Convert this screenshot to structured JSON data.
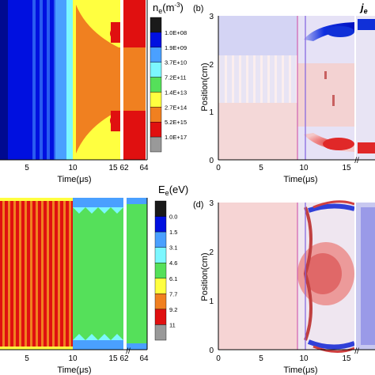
{
  "figure": {
    "panels": [
      {
        "id": "a",
        "label": "",
        "colorbar_title": "n",
        "colorbar_sub": "e",
        "colorbar_unit": "(m",
        "colorbar_sup": "-3",
        "colorbar_unit_end": ")",
        "colorbar_ticks": [
          "1.0E+08",
          "1.9E+09",
          "3.7E+10",
          "7.2E+11",
          "1.4E+13",
          "2.7E+14",
          "5.2E+15",
          "1.0E+17"
        ],
        "colorbar_colors": [
          "#1a1a1a",
          "#0010e0",
          "#4aa0ff",
          "#7cf7ff",
          "#55e05a",
          "#ffff40",
          "#f08020",
          "#e01010",
          "#999999"
        ]
      },
      {
        "id": "b",
        "label": "(b)",
        "colorbar_title": "j",
        "colorbar_sub": "e"
      },
      {
        "id": "c",
        "label": "",
        "colorbar_title": "E",
        "colorbar_sub": "e",
        "colorbar_unit": "(eV)",
        "colorbar_ticks": [
          "0.0",
          "1.5",
          "3.1",
          "4.6",
          "6.1",
          "7.7",
          "9.2",
          "11"
        ],
        "colorbar_colors": [
          "#1a1a1a",
          "#0010e0",
          "#4aa0ff",
          "#7cf7ff",
          "#55e05a",
          "#ffff40",
          "#f08020",
          "#e01010",
          "#999999"
        ]
      },
      {
        "id": "d",
        "label": "(d)"
      }
    ],
    "x_axis": {
      "label": "Time(μs)",
      "ticks": [
        "0",
        "5",
        "10",
        "15",
        "62",
        "64"
      ]
    },
    "y_axis": {
      "label": "Position(cm)",
      "ticks": [
        "0",
        "1",
        "2",
        "3"
      ]
    },
    "break_marker": "//"
  },
  "chart_data": [
    {
      "type": "heatmap",
      "panel": "a",
      "title": "",
      "xlabel": "Time(μs)",
      "ylabel": "",
      "x_ticks": [
        "5",
        "10",
        "15",
        "62",
        "64"
      ],
      "colorbar": [
        "1.0E+08",
        "1.9E+09",
        "3.7E+10",
        "7.2E+11",
        "1.4E+13",
        "2.7E+14",
        "5.2E+15",
        "1.0E+17"
      ],
      "colorbar_label": "ne(m-3)"
    },
    {
      "type": "heatmap",
      "panel": "b",
      "title": "",
      "xlabel": "Time(μs)",
      "ylabel": "Position(cm)",
      "x_ticks": [
        "0",
        "5",
        "10",
        "15"
      ],
      "y_ticks": [
        "0",
        "1",
        "2",
        "3"
      ],
      "ylim": [
        0,
        3
      ],
      "colorbar_label": "je"
    },
    {
      "type": "heatmap",
      "panel": "c",
      "title": "",
      "xlabel": "Time(μs)",
      "ylabel": "",
      "x_ticks": [
        "5",
        "10",
        "15",
        "62",
        "64"
      ],
      "colorbar": [
        "0.0",
        "1.5",
        "3.1",
        "4.6",
        "6.1",
        "7.7",
        "9.2",
        "11"
      ],
      "colorbar_label": "Ee(eV)"
    },
    {
      "type": "heatmap",
      "panel": "d",
      "title": "",
      "xlabel": "Time(μs)",
      "ylabel": "Position(cm)",
      "x_ticks": [
        "0",
        "5",
        "10",
        "15"
      ],
      "y_ticks": [
        "0",
        "1",
        "2",
        "3"
      ],
      "ylim": [
        0,
        3
      ]
    }
  ]
}
